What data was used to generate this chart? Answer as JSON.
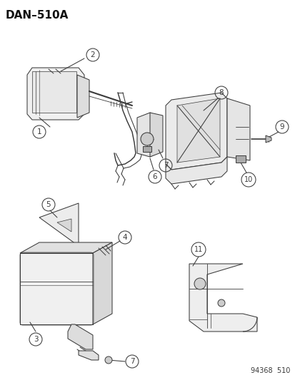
{
  "title": "DAN–510A",
  "footer": "94368  510",
  "bg_color": "#ffffff",
  "title_fontsize": 11,
  "footer_fontsize": 7,
  "line_color": "#3a3a3a",
  "face_color": "#f5f5f5",
  "lw": 0.75
}
